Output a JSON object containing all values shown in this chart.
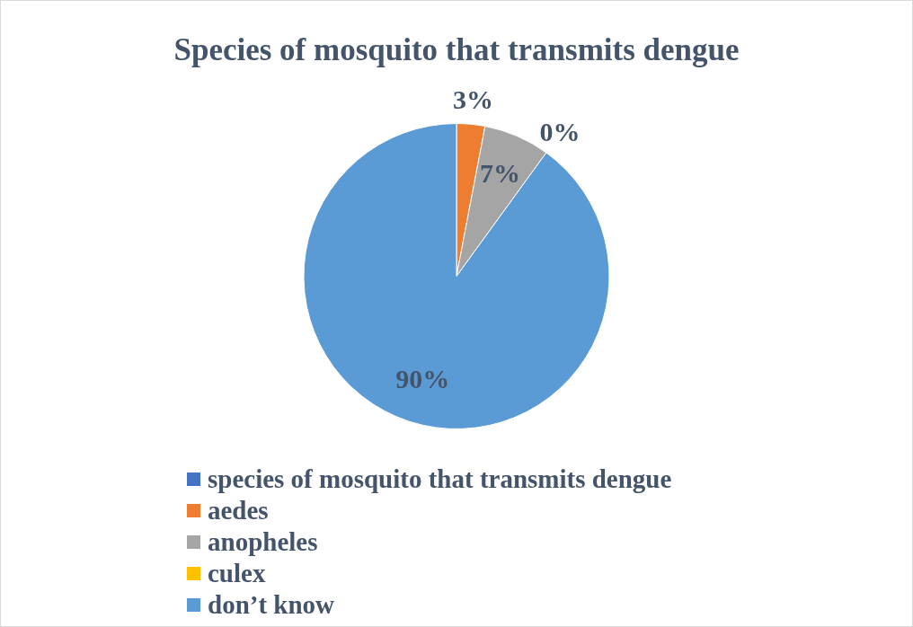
{
  "chart_data": {
    "type": "pie",
    "title": "Species of mosquito that transmits dengue",
    "categories": [
      "species of mosquito that transmits dengue",
      "aedes",
      "anopheles",
      "culex",
      "don’t know"
    ],
    "values": [
      0,
      3,
      7,
      0,
      90
    ],
    "colors": [
      "#4472c4",
      "#ed7d31",
      "#a5a5a5",
      "#ffc000",
      "#5b9bd5"
    ],
    "value_labels": [
      null,
      "3%",
      "7%",
      "0%",
      "90%"
    ],
    "legend": "bottom"
  }
}
